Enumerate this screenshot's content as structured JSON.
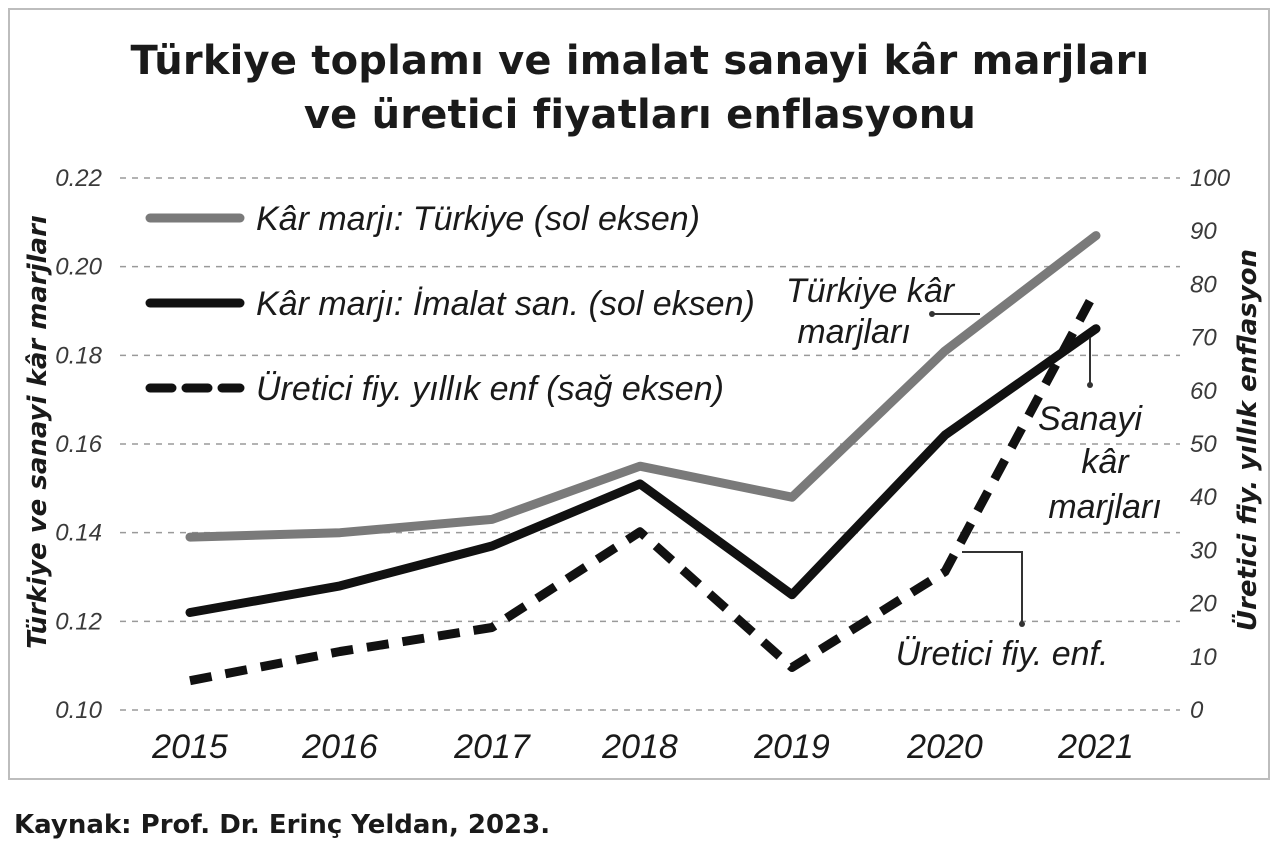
{
  "chart_data": {
    "type": "line",
    "title_lines": [
      "Türkiye toplamı ve imalat sanayi kâr marjları",
      "ve üretici fiyatları enflasyonu"
    ],
    "x": [
      "2015",
      "2016",
      "2017",
      "2018",
      "2019",
      "2020",
      "2021"
    ],
    "ylabel_left": "Türkiye ve sanayi kâr marjları",
    "ylabel_right": "Üretici fiy. yıllık enflasyon",
    "ylim_left": [
      0.1,
      0.22
    ],
    "ylim_right": [
      0,
      100
    ],
    "yticks_left": [
      "0.10",
      "0.12",
      "0.14",
      "0.16",
      "0.18",
      "0.20",
      "0.22"
    ],
    "yticks_right": [
      "0",
      "10",
      "20",
      "30",
      "40",
      "50",
      "60",
      "70",
      "80",
      "90",
      "100"
    ],
    "grid": true,
    "legend_position": "top-left",
    "series": [
      {
        "name": "Kâr marjı: Türkiye (sol eksen)",
        "axis": "left",
        "style": "solid",
        "color": "#7a7a7a",
        "values": [
          0.139,
          0.14,
          0.143,
          0.155,
          0.148,
          0.181,
          0.207
        ]
      },
      {
        "name": "Kâr marjı: İmalat san. (sol eksen)",
        "axis": "left",
        "style": "solid",
        "color": "#111111",
        "values": [
          0.122,
          0.128,
          0.137,
          0.151,
          0.126,
          0.162,
          0.186
        ]
      },
      {
        "name": "Üretici fiy. yıllık enf (sağ eksen)",
        "axis": "right",
        "style": "dashed",
        "color": "#111111",
        "values": [
          5.5,
          11,
          15.5,
          33.5,
          8,
          26,
          79
        ]
      }
    ],
    "annotations": [
      {
        "lines": [
          "Türkiye kâr",
          "marjları"
        ],
        "target_series": 0
      },
      {
        "lines": [
          "Sanayi",
          "kâr",
          "marjları"
        ],
        "target_series": 1
      },
      {
        "lines": [
          "Üretici fiy. enf."
        ],
        "target_series": 2
      }
    ]
  },
  "source": "Kaynak: Prof. Dr. Erinç Yeldan, 2023."
}
